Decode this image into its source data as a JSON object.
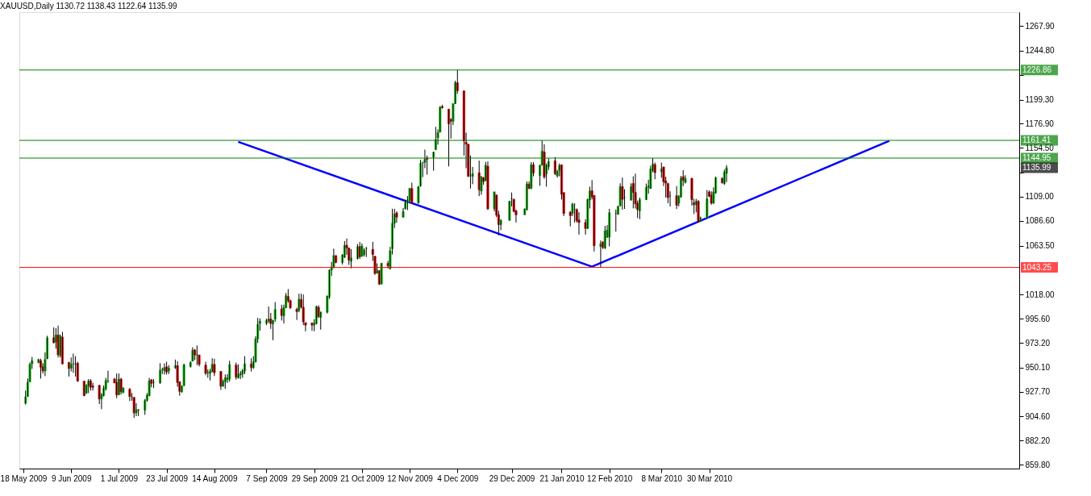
{
  "chart_data": {
    "type": "candlestick",
    "title": "XAUUSD,Daily 1130.72 1138.43 1122.64 1135.99",
    "x": [
      "2009-05-19",
      "2009-05-20",
      "2009-05-21",
      "2009-05-22",
      "2009-05-25",
      "2009-05-26",
      "2009-05-27",
      "2009-05-28",
      "2009-05-29",
      "2009-06-01",
      "2009-06-02",
      "2009-06-03",
      "2009-06-04",
      "2009-06-05",
      "2009-06-08",
      "2009-06-09",
      "2009-06-10",
      "2009-06-11",
      "2009-06-12",
      "2009-06-15",
      "2009-06-16",
      "2009-06-17",
      "2009-06-18",
      "2009-06-19",
      "2009-06-22",
      "2009-06-23",
      "2009-06-24",
      "2009-06-25",
      "2009-06-26",
      "2009-06-29",
      "2009-06-30",
      "2009-07-01",
      "2009-07-02",
      "2009-07-03",
      "2009-07-06",
      "2009-07-07",
      "2009-07-08",
      "2009-07-09",
      "2009-07-10",
      "2009-07-13",
      "2009-07-14",
      "2009-07-15",
      "2009-07-16",
      "2009-07-17",
      "2009-07-20",
      "2009-07-21",
      "2009-07-22",
      "2009-07-23",
      "2009-07-24",
      "2009-07-27",
      "2009-07-28",
      "2009-07-29",
      "2009-07-30",
      "2009-07-31",
      "2009-08-03",
      "2009-08-04",
      "2009-08-05",
      "2009-08-06",
      "2009-08-07",
      "2009-08-10",
      "2009-08-11",
      "2009-08-12",
      "2009-08-13",
      "2009-08-14",
      "2009-08-17",
      "2009-08-18",
      "2009-08-19",
      "2009-08-20",
      "2009-08-21",
      "2009-08-24",
      "2009-08-25",
      "2009-08-26",
      "2009-08-27",
      "2009-08-28",
      "2009-08-31",
      "2009-09-01",
      "2009-09-02",
      "2009-09-03",
      "2009-09-04",
      "2009-09-07",
      "2009-09-08",
      "2009-09-09",
      "2009-09-10",
      "2009-09-11",
      "2009-09-14",
      "2009-09-15",
      "2009-09-16",
      "2009-09-17",
      "2009-09-18",
      "2009-09-21",
      "2009-09-22",
      "2009-09-23",
      "2009-09-24",
      "2009-09-25",
      "2009-09-28",
      "2009-09-29",
      "2009-09-30",
      "2009-10-01",
      "2009-10-02",
      "2009-10-05",
      "2009-10-06",
      "2009-10-07",
      "2009-10-08",
      "2009-10-09",
      "2009-10-12",
      "2009-10-13",
      "2009-10-14",
      "2009-10-15",
      "2009-10-16",
      "2009-10-19",
      "2009-10-20",
      "2009-10-21",
      "2009-10-22",
      "2009-10-23",
      "2009-10-26",
      "2009-10-27",
      "2009-10-28",
      "2009-10-29",
      "2009-10-30",
      "2009-11-02",
      "2009-11-03",
      "2009-11-04",
      "2009-11-05",
      "2009-11-06",
      "2009-11-09",
      "2009-11-10",
      "2009-11-11",
      "2009-11-12",
      "2009-11-13",
      "2009-11-16",
      "2009-11-17",
      "2009-11-18",
      "2009-11-19",
      "2009-11-20",
      "2009-11-23",
      "2009-11-24",
      "2009-11-25",
      "2009-11-26",
      "2009-11-27",
      "2009-11-30",
      "2009-12-01",
      "2009-12-02",
      "2009-12-03",
      "2009-12-04",
      "2009-12-07",
      "2009-12-08",
      "2009-12-09",
      "2009-12-10",
      "2009-12-11",
      "2009-12-14",
      "2009-12-15",
      "2009-12-16",
      "2009-12-17",
      "2009-12-18",
      "2009-12-21",
      "2009-12-22",
      "2009-12-23",
      "2009-12-24",
      "2009-12-28",
      "2009-12-29",
      "2009-12-30",
      "2009-12-31",
      "2010-01-04",
      "2010-01-05",
      "2010-01-06",
      "2010-01-07",
      "2010-01-08",
      "2010-01-11",
      "2010-01-12",
      "2010-01-13",
      "2010-01-14",
      "2010-01-15",
      "2010-01-18",
      "2010-01-19",
      "2010-01-20",
      "2010-01-21",
      "2010-01-22",
      "2010-01-25",
      "2010-01-26",
      "2010-01-27",
      "2010-01-28",
      "2010-01-29",
      "2010-02-01",
      "2010-02-02",
      "2010-02-03",
      "2010-02-04",
      "2010-02-05",
      "2010-02-08",
      "2010-02-09",
      "2010-02-10",
      "2010-02-11",
      "2010-02-12",
      "2010-02-15",
      "2010-02-16",
      "2010-02-17",
      "2010-02-18",
      "2010-02-19",
      "2010-02-22",
      "2010-02-23",
      "2010-02-24",
      "2010-02-25",
      "2010-02-26",
      "2010-03-01",
      "2010-03-02",
      "2010-03-03",
      "2010-03-04",
      "2010-03-05",
      "2010-03-08",
      "2010-03-09",
      "2010-03-10",
      "2010-03-11",
      "2010-03-12",
      "2010-03-15",
      "2010-03-16",
      "2010-03-17",
      "2010-03-18",
      "2010-03-19",
      "2010-03-22",
      "2010-03-23",
      "2010-03-24",
      "2010-03-25",
      "2010-03-26",
      "2010-03-29",
      "2010-03-30",
      "2010-03-31",
      "2010-04-01",
      "2010-04-02",
      "2010-04-05",
      "2010-04-06",
      "2010-04-07"
    ],
    "ohlc": [
      [
        916.9,
        928.7,
        915.7,
        922.8
      ],
      [
        923.3,
        939.9,
        922.8,
        936.5
      ],
      [
        937.0,
        954.8,
        936.5,
        953.1
      ],
      [
        953.6,
        960.0,
        948.9,
        956.5
      ],
      [
        954.8,
        958.4,
        954.1,
        957.6
      ],
      [
        956.5,
        958.4,
        939.9,
        950.5
      ],
      [
        950.8,
        954.1,
        944.6,
        947.0
      ],
      [
        947.0,
        964.3,
        942.2,
        957.6
      ],
      [
        958.4,
        979.7,
        957.9,
        977.8
      ],
      [
        977.8,
        987.5,
        972.6,
        973.3
      ],
      [
        973.8,
        986.8,
        967.8,
        980.4
      ],
      [
        980.4,
        989.2,
        959.5,
        961.9
      ],
      [
        961.4,
        980.9,
        959.5,
        979.2
      ],
      [
        978.5,
        983.2,
        953.1,
        953.6
      ],
      [
        954.8,
        955.5,
        941.8,
        949.3
      ],
      [
        949.6,
        959.5,
        946.5,
        953.1
      ],
      [
        953.6,
        963.1,
        945.3,
        953.6
      ],
      [
        953.6,
        960.7,
        941.8,
        953.6
      ],
      [
        954.1,
        955.5,
        937.0,
        937.5
      ],
      [
        937.5,
        937.8,
        923.5,
        924.0
      ],
      [
        926.4,
        934.7,
        925.6,
        933.5
      ],
      [
        933.0,
        939.4,
        926.4,
        937.7
      ],
      [
        937.7,
        939.4,
        928.7,
        931.8
      ],
      [
        933.0,
        935.8,
        928.7,
        931.8
      ],
      [
        933.5,
        934.2,
        916.2,
        920.9
      ],
      [
        921.1,
        926.4,
        911.4,
        924.7
      ],
      [
        924.0,
        933.5,
        923.3,
        931.1
      ],
      [
        930.4,
        940.6,
        928.7,
        938.2
      ],
      [
        937.7,
        947.2,
        935.8,
        937.7
      ],
      [
        939.4,
        940.6,
        935.8,
        935.8
      ],
      [
        936.5,
        944.6,
        921.6,
        924.7
      ],
      [
        924.7,
        944.6,
        924.7,
        939.4
      ],
      [
        939.4,
        940.6,
        925.2,
        927.6
      ],
      [
        927.1,
        931.8,
        926.1,
        931.1
      ],
      [
        929.9,
        931.1,
        919.0,
        923.3
      ],
      [
        922.8,
        926.4,
        919.3,
        922.8
      ],
      [
        922.3,
        922.8,
        903.4,
        907.9
      ],
      [
        908.1,
        916.9,
        905.0,
        911.0
      ],
      [
        910.5,
        911.4,
        905.0,
        911.0
      ],
      [
        910.5,
        920.9,
        906.2,
        919.5
      ],
      [
        919.7,
        926.4,
        918.5,
        924.5
      ],
      [
        924.0,
        940.6,
        923.3,
        937.7
      ],
      [
        938.7,
        939.4,
        931.8,
        935.4
      ],
      [
        936.3,
        939.4,
        931.1,
        936.3
      ],
      [
        935.8,
        954.1,
        935.1,
        947.7
      ],
      [
        948.2,
        950.1,
        944.1,
        948.2
      ],
      [
        947.2,
        954.1,
        943.7,
        950.1
      ],
      [
        950.8,
        955.5,
        943.7,
        946.0
      ],
      [
        947.0,
        952.4,
        944.1,
        949.6
      ],
      [
        950.1,
        957.6,
        948.9,
        951.9
      ],
      [
        951.9,
        956.0,
        932.3,
        936.3
      ],
      [
        937.0,
        937.0,
        924.0,
        928.0
      ],
      [
        927.6,
        933.5,
        926.8,
        933.0
      ],
      [
        933.5,
        953.6,
        932.8,
        952.9
      ],
      [
        951.2,
        956.0,
        950.1,
        954.8
      ],
      [
        956.0,
        969.0,
        956.0,
        966.4
      ],
      [
        966.4,
        967.4,
        957.2,
        961.9
      ],
      [
        961.9,
        970.7,
        952.4,
        961.9
      ],
      [
        961.9,
        961.9,
        951.2,
        953.1
      ],
      [
        952.4,
        955.5,
        943.0,
        944.8
      ],
      [
        945.3,
        948.4,
        940.6,
        945.3
      ],
      [
        944.6,
        948.9,
        938.2,
        946.5
      ],
      [
        946.0,
        958.8,
        946.0,
        953.1
      ],
      [
        953.1,
        958.4,
        942.2,
        945.3
      ],
      [
        946.5,
        947.0,
        929.4,
        932.8
      ],
      [
        932.8,
        938.9,
        932.3,
        937.0
      ],
      [
        937.0,
        943.7,
        930.4,
        940.6
      ],
      [
        938.9,
        944.1,
        935.8,
        940.6
      ],
      [
        939.4,
        956.5,
        937.0,
        952.9
      ],
      [
        952.4,
        954.8,
        938.9,
        941.3
      ],
      [
        940.6,
        953.1,
        939.9,
        943.7
      ],
      [
        943.2,
        947.0,
        939.4,
        944.6
      ],
      [
        944.1,
        948.9,
        940.6,
        947.2
      ],
      [
        947.0,
        960.7,
        944.1,
        953.6
      ],
      [
        953.6,
        958.8,
        946.5,
        950.1
      ],
      [
        950.1,
        960.7,
        948.9,
        955.5
      ],
      [
        955.5,
        979.2,
        954.8,
        976.8
      ],
      [
        976.8,
        996.3,
        973.0,
        990.3
      ],
      [
        991.1,
        995.8,
        984.4,
        993.2
      ],
      [
        991.5,
        995.6,
        989.6,
        993.9
      ],
      [
        993.4,
        1006.9,
        991.5,
        995.3
      ],
      [
        995.3,
        1001.0,
        986.1,
        991.1
      ],
      [
        990.8,
        994.4,
        975.6,
        993.9
      ],
      [
        995.1,
        1011.0,
        992.7,
        1004.1
      ],
      [
        1004.6,
        1008.6,
        993.9,
        998.6
      ],
      [
        998.2,
        1008.6,
        991.1,
        1005.8
      ],
      [
        1005.8,
        1019.5,
        1005.3,
        1016.9
      ],
      [
        1016.2,
        1023.1,
        1010.5,
        1012.4
      ],
      [
        1012.4,
        1013.3,
        1004.6,
        1005.8
      ],
      [
        1004.3,
        1005.8,
        994.4,
        1002.2
      ],
      [
        1003.4,
        1018.8,
        1001.5,
        1013.8
      ],
      [
        1013.3,
        1018.8,
        1005.3,
        1006.5
      ],
      [
        1006.2,
        1018.1,
        989.6,
        992.7
      ],
      [
        992.0,
        992.0,
        983.9,
        989.6
      ],
      [
        991.5,
        992.0,
        984.4,
        989.6
      ],
      [
        989.6,
        995.1,
        983.9,
        991.5
      ],
      [
        991.1,
        1007.6,
        990.3,
        1006.9
      ],
      [
        1006.2,
        1008.1,
        996.3,
        997.5
      ],
      [
        996.7,
        1002.2,
        985.4,
        1001.7
      ],
      [
        1001.5,
        1017.1,
        1000.5,
        1016.7
      ],
      [
        1015.7,
        1041.3,
        1014.0,
        1040.8
      ],
      [
        1040.8,
        1048.4,
        1035.4,
        1043.7
      ],
      [
        1043.2,
        1060.7,
        1042.5,
        1054.3
      ],
      [
        1054.3,
        1054.3,
        1047.2,
        1047.9
      ],
      [
        1047.9,
        1055.5,
        1046.0,
        1055.0
      ],
      [
        1052.7,
        1067.8,
        1052.0,
        1063.8
      ],
      [
        1063.8,
        1070.2,
        1055.0,
        1061.4
      ],
      [
        1061.4,
        1061.4,
        1045.6,
        1050.1
      ],
      [
        1048.9,
        1060.3,
        1042.5,
        1052.0
      ],
      [
        1051.3,
        1065.0,
        1050.8,
        1062.6
      ],
      [
        1062.6,
        1066.9,
        1051.3,
        1053.2
      ],
      [
        1053.6,
        1065.5,
        1053.2,
        1063.1
      ],
      [
        1055.3,
        1061.0,
        1053.5,
        1059.3
      ],
      [
        1060.7,
        1062.4,
        1052.9,
        1060.7
      ],
      [
        1060.0,
        1067.1,
        1049.4,
        1055.3
      ],
      [
        1053.6,
        1054.1,
        1036.4,
        1037.6
      ],
      [
        1038.0,
        1047.0,
        1037.6,
        1040.4
      ],
      [
        1040.4,
        1040.4,
        1027.0,
        1027.7
      ],
      [
        1027.7,
        1047.5,
        1027.7,
        1047.0
      ],
      [
        1047.0,
        1049.4,
        1042.3,
        1044.7
      ],
      [
        1042.3,
        1062.4,
        1041.1,
        1058.8
      ],
      [
        1060.7,
        1097.8,
        1055.3,
        1084.3
      ],
      [
        1084.3,
        1097.8,
        1080.0,
        1093.0
      ],
      [
        1093.8,
        1095.4,
        1084.8,
        1090.0
      ],
      [
        1090.0,
        1098.5,
        1089.5,
        1095.2
      ],
      [
        1097.8,
        1106.0,
        1097.1,
        1103.7
      ],
      [
        1103.2,
        1109.6,
        1096.6,
        1106.0
      ],
      [
        1105.5,
        1117.3,
        1104.8,
        1116.6
      ],
      [
        1116.6,
        1122.0,
        1102.5,
        1103.0
      ],
      [
        1103.2,
        1119.0,
        1102.5,
        1118.3
      ],
      [
        1119.0,
        1143.3,
        1118.3,
        1140.2
      ],
      [
        1141.0,
        1141.4,
        1127.3,
        1141.0
      ],
      [
        1141.0,
        1152.8,
        1135.5,
        1143.8
      ],
      [
        1145.0,
        1147.3,
        1129.6,
        1143.8
      ],
      [
        1145.7,
        1150.9,
        1133.2,
        1150.4
      ],
      [
        1152.7,
        1174.0,
        1152.7,
        1162.2
      ],
      [
        1163.8,
        1171.6,
        1157.5,
        1168.6
      ],
      [
        1169.3,
        1193.3,
        1168.6,
        1192.2
      ],
      [
        1192.9,
        1194.5,
        1191.0,
        1191.7
      ],
      [
        1190.5,
        1190.5,
        1137.2,
        1176.8
      ],
      [
        1180.8,
        1182.0,
        1163.1,
        1179.2
      ],
      [
        1179.2,
        1195.7,
        1175.6,
        1195.7
      ],
      [
        1195.7,
        1216.9,
        1195.2,
        1215.0
      ],
      [
        1215.0,
        1226.86,
        1204.7,
        1207.5
      ],
      [
        1207.5,
        1207.5,
        1147.3,
        1160.8
      ],
      [
        1159.6,
        1168.6,
        1135.5,
        1157.9
      ],
      [
        1157.9,
        1157.9,
        1127.3,
        1128.0
      ],
      [
        1128.4,
        1147.3,
        1116.6,
        1128.4
      ],
      [
        1128.0,
        1136.7,
        1120.6,
        1130.3
      ],
      [
        1131.3,
        1142.6,
        1109.6,
        1115.5
      ],
      [
        1114.3,
        1128.4,
        1110.8,
        1127.3
      ],
      [
        1126.8,
        1127.3,
        1120.1,
        1123.2
      ],
      [
        1123.7,
        1141.4,
        1123.7,
        1138.3
      ],
      [
        1137.4,
        1141.9,
        1096.6,
        1097.8
      ],
      [
        1097.8,
        1113.6,
        1095.4,
        1113.6
      ],
      [
        1110.7,
        1110.7,
        1090.0,
        1091.9
      ],
      [
        1092.2,
        1095.8,
        1073.1,
        1083.1
      ],
      [
        1083.1,
        1088.1,
        1077.9,
        1087.0
      ],
      [
        1087.0,
        1105.3,
        1086.7,
        1104.8
      ],
      [
        1107.2,
        1112.9,
        1100.1,
        1107.2
      ],
      [
        1106.5,
        1107.2,
        1094.6,
        1095.3
      ],
      [
        1095.8,
        1097.0,
        1085.0,
        1092.2
      ],
      [
        1092.2,
        1098.1,
        1092.2,
        1097.7
      ],
      [
        1097.0,
        1123.2,
        1096.2,
        1120.8
      ],
      [
        1120.8,
        1123.2,
        1116.0,
        1116.8
      ],
      [
        1116.8,
        1141.1,
        1116.0,
        1138.7
      ],
      [
        1138.7,
        1141.1,
        1128.0,
        1131.1
      ],
      [
        1128.7,
        1138.7,
        1119.1,
        1138.2
      ],
      [
        1138.2,
        1161.4,
        1138.2,
        1151.4
      ],
      [
        1150.6,
        1157.8,
        1125.6,
        1127.5
      ],
      [
        1130.4,
        1139.9,
        1118.4,
        1138.2
      ],
      [
        1136.8,
        1144.7,
        1133.9,
        1141.6
      ],
      [
        1142.3,
        1145.9,
        1129.2,
        1130.4
      ],
      [
        1128.4,
        1133.9,
        1126.8,
        1132.7
      ],
      [
        1133.5,
        1139.9,
        1128.0,
        1138.0
      ],
      [
        1138.7,
        1138.7,
        1106.5,
        1111.3
      ],
      [
        1112.9,
        1112.9,
        1091.0,
        1093.4
      ],
      [
        1094.6,
        1095.8,
        1081.4,
        1091.5
      ],
      [
        1093.4,
        1103.4,
        1091.0,
        1102.2
      ],
      [
        1097.4,
        1102.9,
        1085.0,
        1097.4
      ],
      [
        1097.0,
        1098.1,
        1085.0,
        1086.7
      ],
      [
        1087.4,
        1094.6,
        1073.8,
        1085.0
      ],
      [
        1085.0,
        1088.1,
        1073.8,
        1079.5
      ],
      [
        1079.5,
        1107.2,
        1079.1,
        1106.5
      ],
      [
        1106.0,
        1118.4,
        1098.1,
        1114.4
      ],
      [
        1114.4,
        1124.4,
        1106.5,
        1108.9
      ],
      [
        1110.1,
        1110.6,
        1058.1,
        1063.5
      ],
      [
        1062.8,
        1068.3,
        1043.7,
        1065.2
      ],
      [
        1067.1,
        1067.1,
        1060.4,
        1061.9
      ],
      [
        1061.2,
        1081.9,
        1060.4,
        1077.2
      ],
      [
        1071.4,
        1082.6,
        1070.7,
        1077.9
      ],
      [
        1071.4,
        1097.7,
        1062.8,
        1094.1
      ],
      [
        1093.4,
        1097.0,
        1076.7,
        1093.4
      ],
      [
        1092.7,
        1100.5,
        1092.2,
        1100.1
      ],
      [
        1100.5,
        1121.5,
        1100.1,
        1118.4
      ],
      [
        1118.4,
        1126.8,
        1097.0,
        1106.5
      ],
      [
        1108.2,
        1116.0,
        1097.7,
        1108.2
      ],
      [
        1106.0,
        1121.5,
        1105.3,
        1118.4
      ],
      [
        1121.3,
        1128.0,
        1098.1,
        1113.0
      ],
      [
        1113.0,
        1130.4,
        1098.1,
        1102.4
      ],
      [
        1102.9,
        1105.3,
        1089.1,
        1097.0
      ],
      [
        1095.9,
        1108.2,
        1088.1,
        1106.3
      ],
      [
        1106.3,
        1121.2,
        1105.9,
        1117.7
      ],
      [
        1117.7,
        1124.8,
        1111.8,
        1118.9
      ],
      [
        1116.5,
        1137.8,
        1116.5,
        1134.7
      ],
      [
        1133.7,
        1144.9,
        1131.9,
        1139.4
      ],
      [
        1138.9,
        1140.8,
        1125.2,
        1131.4
      ],
      [
        1132.3,
        1140.8,
        1126.7,
        1134.7
      ],
      [
        1136.6,
        1137.1,
        1118.9,
        1122.9
      ],
      [
        1123.6,
        1127.6,
        1108.2,
        1121.7
      ],
      [
        1121.2,
        1121.9,
        1103.0,
        1108.2
      ],
      [
        1109.9,
        1114.1,
        1100.0,
        1109.9
      ],
      [
        1109.9,
        1118.9,
        1097.6,
        1101.1
      ],
      [
        1103.0,
        1110.6,
        1100.0,
        1109.4
      ],
      [
        1108.7,
        1128.3,
        1108.2,
        1126.0
      ],
      [
        1127.6,
        1133.7,
        1118.9,
        1124.3
      ],
      [
        1122.4,
        1129.0,
        1121.2,
        1126.0
      ],
      [
        1126.0,
        1126.7,
        1100.7,
        1106.3
      ],
      [
        1103.5,
        1107.0,
        1092.9,
        1101.6
      ],
      [
        1101.6,
        1107.0,
        1094.5,
        1104.7
      ],
      [
        1104.7,
        1105.9,
        1085.1,
        1085.8
      ],
      [
        1087.0,
        1090.5,
        1085.8,
        1089.3
      ],
      [
        1089.3,
        1115.3,
        1088.8,
        1107.0
      ],
      [
        1113.4,
        1114.8,
        1108.7,
        1109.4
      ],
      [
        1110.6,
        1114.1,
        1101.6,
        1103.0
      ],
      [
        1103.0,
        1117.7,
        1102.3,
        1113.4
      ],
      [
        1112.5,
        1127.6,
        1111.8,
        1126.7
      ],
      [
        1126.0,
        1127.1,
        1121.2,
        1122.0
      ],
      [
        1121.2,
        1134.2,
        1120.0,
        1131.9
      ],
      [
        1130.72,
        1138.43,
        1122.64,
        1135.99
      ]
    ],
    "colors": [
      "#22c422",
      "#22c422",
      "#22c422",
      "#22c422",
      "#22c422",
      "#e01010",
      "#e01010",
      "#22c422",
      "#22c422",
      "#e01010",
      "#22c422",
      "#e01010",
      "#22c422",
      "#e01010",
      "#e01010",
      "#22c422",
      "#22c422",
      "#22c422",
      "#e01010",
      "#e01010",
      "#22c422",
      "#22c422",
      "#e01010",
      "#e01010",
      "#e01010",
      "#22c422",
      "#22c422",
      "#22c422",
      "#22c422",
      "#e01010",
      "#e01010",
      "#22c422",
      "#e01010",
      "#22c422",
      "#e01010",
      "#22c422",
      "#e01010",
      "#22c422",
      "#22c422",
      "#22c422",
      "#22c422",
      "#22c422",
      "#e01010",
      "#22c422",
      "#22c422",
      "#22c422",
      "#22c422",
      "#e01010",
      "#22c422",
      "#22c422",
      "#e01010",
      "#e01010",
      "#22c422",
      "#22c422",
      "#22c422",
      "#22c422",
      "#e01010",
      "#22c422",
      "#e01010",
      "#e01010",
      "#22c422",
      "#22c422",
      "#22c422",
      "#e01010",
      "#e01010",
      "#22c422",
      "#22c422",
      "#22c422",
      "#22c422",
      "#e01010",
      "#22c422",
      "#22c422",
      "#22c422",
      "#22c422",
      "#e01010",
      "#22c422",
      "#22c422",
      "#22c422",
      "#22c422",
      "#22c422",
      "#22c422",
      "#e01010",
      "#22c422",
      "#22c422",
      "#e01010",
      "#22c422",
      "#22c422",
      "#e01010",
      "#e01010",
      "#e01010",
      "#22c422",
      "#e01010",
      "#e01010",
      "#e01010",
      "#e01010",
      "#22c422",
      "#22c422",
      "#e01010",
      "#22c422",
      "#22c422",
      "#22c422",
      "#22c422",
      "#22c422",
      "#e01010",
      "#22c422",
      "#22c422",
      "#e01010",
      "#e01010",
      "#22c422",
      "#22c422",
      "#e01010",
      "#22c422",
      "#22c422",
      "#22c422",
      "#e01010",
      "#e01010",
      "#22c422",
      "#e01010",
      "#22c422",
      "#e01010",
      "#22c422",
      "#22c422",
      "#22c422",
      "#e01010",
      "#22c422",
      "#22c422",
      "#22c422",
      "#22c422",
      "#e01010",
      "#22c422",
      "#22c422",
      "#22c422",
      "#22c422",
      "#e01010",
      "#22c422",
      "#22c422",
      "#22c422",
      "#22c422",
      "#e01010",
      "#e01010",
      "#e01010",
      "#22c422",
      "#22c422",
      "#e01010",
      "#e01010",
      "#e01010",
      "#e01010",
      "#22c422",
      "#22c422",
      "#e01010",
      "#22c422",
      "#e01010",
      "#22c422",
      "#e01010",
      "#22c422",
      "#e01010",
      "#e01010",
      "#22c422",
      "#22c422",
      "#22c422",
      "#e01010",
      "#e01010",
      "#22c422",
      "#22c422",
      "#e01010",
      "#22c422",
      "#e01010",
      "#22c422",
      "#22c422",
      "#e01010",
      "#22c422",
      "#22c422",
      "#e01010",
      "#22c422",
      "#22c422",
      "#e01010",
      "#e01010",
      "#e01010",
      "#22c422",
      "#22c422",
      "#e01010",
      "#e01010",
      "#e01010",
      "#22c422",
      "#22c422",
      "#e01010",
      "#e01010",
      "#22c422",
      "#e01010",
      "#22c422",
      "#22c422",
      "#22c422",
      "#22c422",
      "#22c422",
      "#22c422",
      "#e01010",
      "#22c422",
      "#22c422",
      "#e01010",
      "#e01010",
      "#e01010",
      "#22c422",
      "#22c422",
      "#22c422",
      "#22c422",
      "#22c422",
      "#e01010",
      "#22c422",
      "#e01010",
      "#e01010",
      "#e01010",
      "#22c422",
      "#e01010",
      "#22c422",
      "#22c422",
      "#e01010",
      "#22c422",
      "#e01010",
      "#e01010",
      "#22c422",
      "#e01010",
      "#22c422",
      "#22c422",
      "#e01010",
      "#e01010",
      "#22c422",
      "#22c422",
      "#e01010",
      "#22c422",
      "#22c422"
    ],
    "series": [
      {
        "type": "line",
        "color": "#0000ff",
        "x": [
          "2009-08-25",
          "2010-02-04",
          "2010-06-21"
        ],
        "values": [
          1160,
          1044,
          1161
        ]
      }
    ],
    "xlim": [
      "2009-05-18",
      "2010-08-18"
    ],
    "ylim": [
      856.2,
      1280.7
    ],
    "xticks": [
      {
        "value": "2009-05-18",
        "label": "18 May 2009"
      },
      {
        "value": "2009-06-09",
        "label": "9 Jun 2009"
      },
      {
        "value": "2009-07-01",
        "label": "1 Jul 2009"
      },
      {
        "value": "2009-07-23",
        "label": "23 Jul 2009"
      },
      {
        "value": "2009-08-14",
        "label": "14 Aug 2009"
      },
      {
        "value": "2009-09-07",
        "label": "7 Sep 2009"
      },
      {
        "value": "2009-09-29",
        "label": "29 Sep 2009"
      },
      {
        "value": "2009-10-21",
        "label": "21 Oct 2009"
      },
      {
        "value": "2009-11-12",
        "label": "12 Nov 2009"
      },
      {
        "value": "2009-12-04",
        "label": "4 Dec 2009"
      },
      {
        "value": "2009-12-29",
        "label": "29 Dec 2009"
      },
      {
        "value": "2010-01-21",
        "label": "21 Jan 2010"
      },
      {
        "value": "2010-02-12",
        "label": "12 Feb 2010"
      },
      {
        "value": "2010-03-08",
        "label": "8 Mar 2010"
      },
      {
        "value": "2010-03-30",
        "label": "30 Mar 2010"
      }
    ],
    "yticks": [
      {
        "value": 859.8,
        "label": "859.80"
      },
      {
        "value": 882.2,
        "label": "882.20"
      },
      {
        "value": 904.6,
        "label": "904.60"
      },
      {
        "value": 927.7,
        "label": "927.70"
      },
      {
        "value": 950.1,
        "label": "950.10"
      },
      {
        "value": 973.2,
        "label": "973.20"
      },
      {
        "value": 995.6,
        "label": "995.60"
      },
      {
        "value": 1018.0,
        "label": "1018.00"
      },
      {
        "value": 1063.5,
        "label": "1063.50"
      },
      {
        "value": 1086.6,
        "label": "1086.60"
      },
      {
        "value": 1109.0,
        "label": "1109.00"
      },
      {
        "value": 1131.4,
        "label": null
      },
      {
        "value": 1154.5,
        "label": "1154.50"
      },
      {
        "value": 1176.9,
        "label": "1176.90"
      },
      {
        "value": 1199.3,
        "label": "1199.30"
      },
      {
        "value": 1222.4,
        "label": null
      },
      {
        "value": 1244.8,
        "label": "1244.80"
      },
      {
        "value": 1267.9,
        "label": "1267.90"
      }
    ],
    "ref_lines": [
      {
        "axis": "y",
        "value": 1226.86,
        "label": "1226.86",
        "color": "#008000"
      },
      {
        "axis": "y",
        "value": 1161.41,
        "label": "1161.41",
        "color": "#008000"
      },
      {
        "axis": "y",
        "value": 1144.95,
        "label": "1144.95",
        "color": "#008000"
      },
      {
        "axis": "y",
        "value": 1043.25,
        "label": "1043.25",
        "color": "#ff0000"
      }
    ],
    "annotations": [
      "1135.99"
    ]
  }
}
